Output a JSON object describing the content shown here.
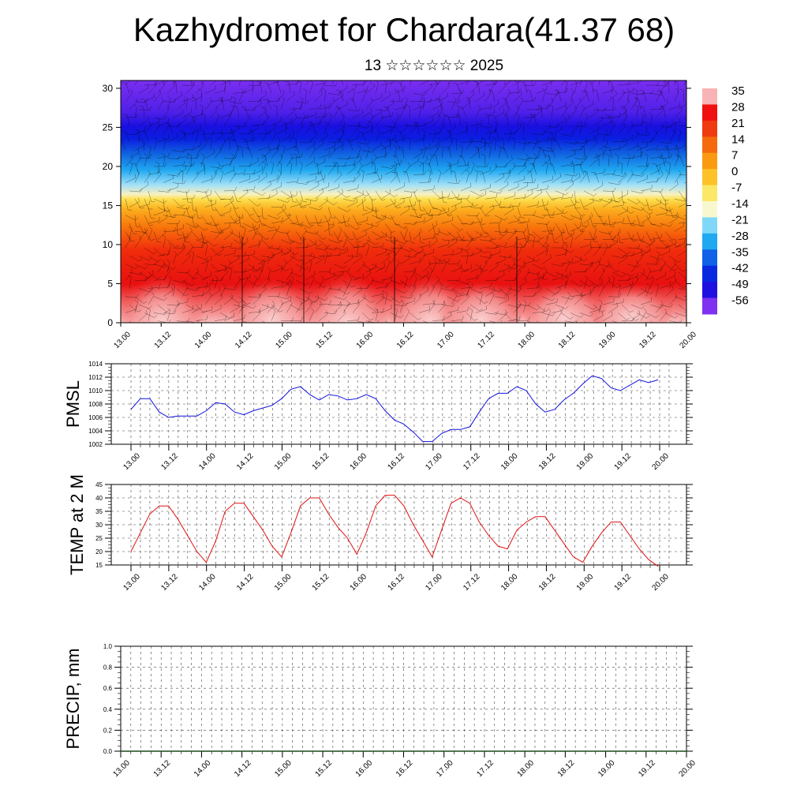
{
  "title": "Kazhydromet for Chardara(41.37 68)",
  "subtitle": "13 ☆☆☆☆☆☆ 2025",
  "time_ticks": [
    "13.00",
    "13.12",
    "14.00",
    "14.12",
    "15.00",
    "15.12",
    "16.00",
    "16.12",
    "17.00",
    "17.12",
    "18.00",
    "18.12",
    "19.00",
    "19.12",
    "20.00"
  ],
  "chart_data": [
    {
      "type": "heatmap",
      "title": "Kazhydromet for Chardara(41.37 68)",
      "subtitle": "13 ☆☆☆☆☆☆ 2025",
      "y_ticks": [
        0,
        5,
        10,
        15,
        20,
        25,
        30
      ],
      "ylim": [
        0,
        31
      ],
      "colorbar_labels": [
        "35",
        "28",
        "21",
        "14",
        "7",
        "0",
        "-7",
        "-14",
        "-21",
        "-28",
        "-35",
        "-42",
        "-49",
        "-56"
      ],
      "colorbar_colors": [
        "#f8b4b4",
        "#f01010",
        "#f03a10",
        "#f56a0c",
        "#fa9a10",
        "#fcc228",
        "#fce868",
        "#f8f8d0",
        "#80d8f8",
        "#20a8f0",
        "#1060e8",
        "#0828e0",
        "#2010e0",
        "#8030f0"
      ],
      "wind_barbs": true
    },
    {
      "type": "line",
      "ylabel": "PMSL",
      "ylim": [
        1002,
        1014
      ],
      "y_ticks": [
        "1002",
        "1004",
        "1006",
        "1008",
        "1010",
        "1012",
        "1014"
      ],
      "x_ticks": [
        "13.00",
        "13.12",
        "14.00",
        "14.12",
        "15.00",
        "15.12",
        "16.00",
        "16.12",
        "17.00",
        "17.12",
        "18.00",
        "18.12",
        "19.00",
        "19.12",
        "20.00"
      ],
      "color": "#1010e0",
      "values": [
        1007.2,
        1008.8,
        1008.8,
        1006.8,
        1006.0,
        1006.2,
        1006.2,
        1006.2,
        1007.0,
        1008.2,
        1008.0,
        1006.8,
        1006.4,
        1007.0,
        1007.4,
        1007.8,
        1008.8,
        1010.2,
        1010.6,
        1009.4,
        1008.6,
        1009.4,
        1009.2,
        1008.6,
        1008.8,
        1009.4,
        1008.8,
        1007.0,
        1005.6,
        1005.0,
        1003.8,
        1002.4,
        1002.4,
        1003.6,
        1004.2,
        1004.2,
        1004.6,
        1006.8,
        1008.8,
        1009.6,
        1009.6,
        1010.6,
        1010.0,
        1008.0,
        1006.8,
        1007.2,
        1008.6,
        1009.6,
        1011.0,
        1012.2,
        1011.8,
        1010.4,
        1010.0,
        1010.8,
        1011.6,
        1011.2,
        1011.6
      ]
    },
    {
      "type": "line",
      "ylabel": "TEMP at 2 M",
      "ylim": [
        15,
        45
      ],
      "y_ticks": [
        "15",
        "20",
        "25",
        "30",
        "35",
        "40",
        "45"
      ],
      "x_ticks": [
        "13.00",
        "13.12",
        "14.00",
        "14.12",
        "15.00",
        "15.12",
        "16.00",
        "16.12",
        "17.00",
        "17.12",
        "18.00",
        "18.12",
        "19.00",
        "19.12",
        "20.00"
      ],
      "color": "#e01010",
      "values": [
        20,
        27,
        34,
        37,
        37,
        32,
        26,
        20,
        16,
        24,
        35,
        38,
        38,
        33,
        28,
        22,
        18,
        27,
        37,
        40,
        40,
        34,
        29,
        25,
        19,
        27,
        37,
        41,
        41,
        37,
        30,
        24,
        18,
        28,
        38,
        40,
        38,
        31,
        26,
        22,
        21,
        28,
        31,
        33,
        33,
        28,
        23,
        18,
        16,
        22,
        27,
        31,
        31,
        26,
        21,
        17,
        14.5
      ]
    },
    {
      "type": "bar",
      "ylabel": "PRECIP, mm",
      "ylim": [
        0,
        1
      ],
      "y_ticks": [
        "0.0",
        "0.2",
        "0.4",
        "0.6",
        "0.8",
        "1.0"
      ],
      "x_ticks": [
        "13.00",
        "13.12",
        "14.00",
        "14.12",
        "15.00",
        "15.12",
        "16.00",
        "16.12",
        "17.00",
        "17.12",
        "18.00",
        "18.12",
        "19.00",
        "19.12",
        "20.00"
      ],
      "values": []
    }
  ]
}
